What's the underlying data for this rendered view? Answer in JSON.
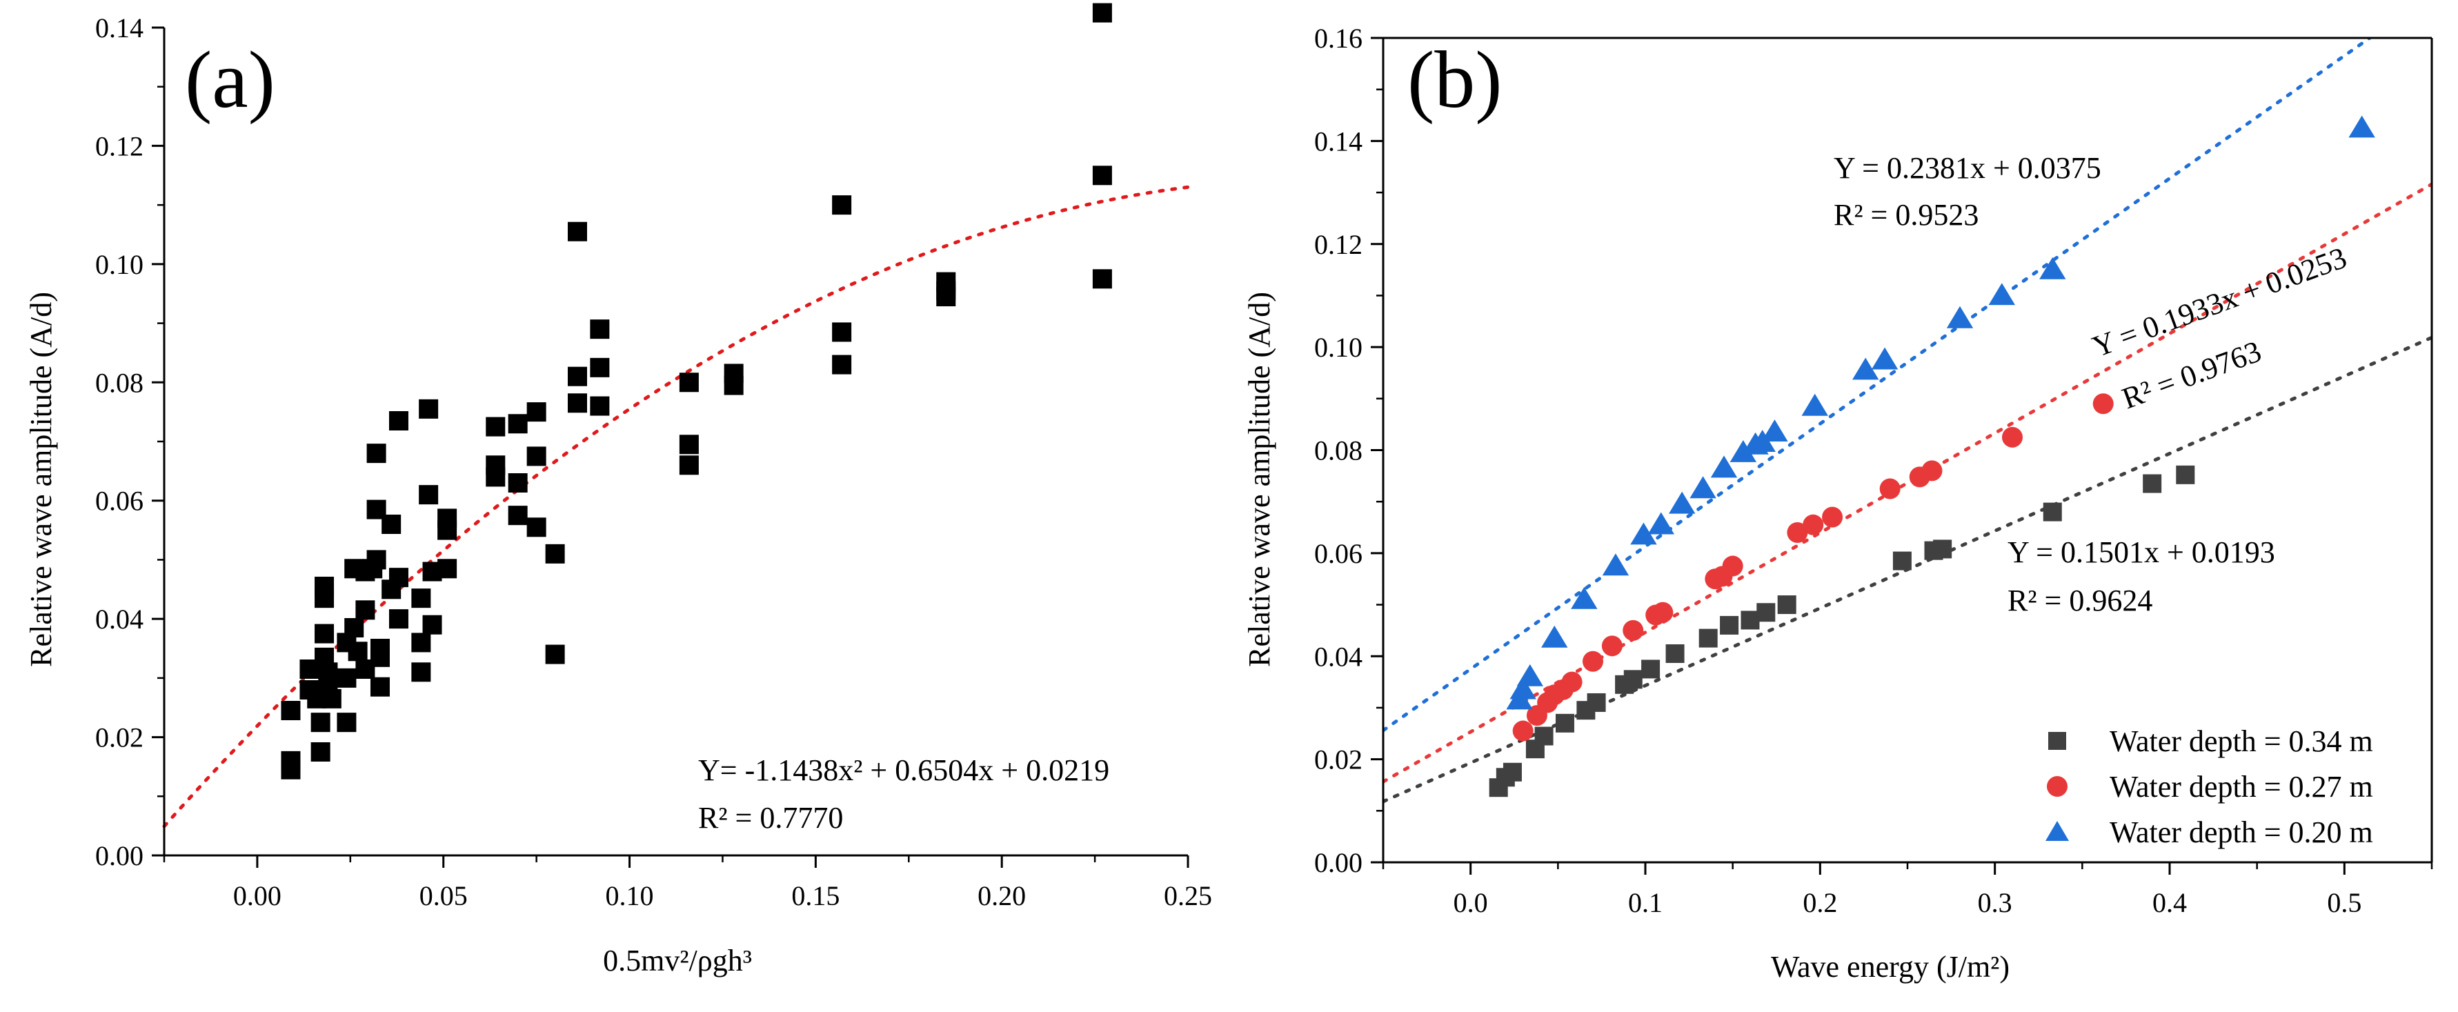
{
  "chart_data": [
    {
      "panel": "(a)",
      "type": "scatter",
      "xlabel": "0.5mv²/ρgh³",
      "ylabel": "Relative wave amplitude (A/d)",
      "xlim": [
        -0.025,
        0.25
      ],
      "ylim": [
        0,
        0.14
      ],
      "xticks": [
        "0.00",
        "0.05",
        "0.10",
        "0.15",
        "0.20",
        "0.25"
      ],
      "yticks": [
        "0.00",
        "0.02",
        "0.04",
        "0.06",
        "0.08",
        "0.10",
        "0.12",
        "0.14"
      ],
      "grid": false,
      "marker": "square",
      "colors": {
        "points": "#000000",
        "fit": "#e0191c"
      },
      "fit": {
        "type": "quadratic",
        "a": -1.1438,
        "b": 0.6504,
        "c": 0.0219
      },
      "equation": "Y= -1.1438x² + 0.6504x + 0.0219",
      "r2": "R² = 0.7770",
      "points": [
        [
          0.009,
          0.0245
        ],
        [
          0.009,
          0.016
        ],
        [
          0.009,
          0.0145
        ],
        [
          0.014,
          0.0315
        ],
        [
          0.014,
          0.028
        ],
        [
          0.016,
          0.0265
        ],
        [
          0.017,
          0.0225
        ],
        [
          0.017,
          0.0175
        ],
        [
          0.018,
          0.0455
        ],
        [
          0.018,
          0.0435
        ],
        [
          0.018,
          0.0375
        ],
        [
          0.018,
          0.0335
        ],
        [
          0.019,
          0.031
        ],
        [
          0.019,
          0.029
        ],
        [
          0.02,
          0.0265
        ],
        [
          0.024,
          0.036
        ],
        [
          0.024,
          0.03
        ],
        [
          0.024,
          0.0225
        ],
        [
          0.026,
          0.0485
        ],
        [
          0.026,
          0.0385
        ],
        [
          0.027,
          0.0345
        ],
        [
          0.029,
          0.048
        ],
        [
          0.029,
          0.0415
        ],
        [
          0.029,
          0.0315
        ],
        [
          0.031,
          0.0485
        ],
        [
          0.032,
          0.068
        ],
        [
          0.032,
          0.0585
        ],
        [
          0.032,
          0.05
        ],
        [
          0.033,
          0.035
        ],
        [
          0.033,
          0.0335
        ],
        [
          0.033,
          0.0285
        ],
        [
          0.036,
          0.056
        ],
        [
          0.036,
          0.045
        ],
        [
          0.038,
          0.0735
        ],
        [
          0.038,
          0.047
        ],
        [
          0.038,
          0.04
        ],
        [
          0.044,
          0.0435
        ],
        [
          0.044,
          0.036
        ],
        [
          0.044,
          0.031
        ],
        [
          0.046,
          0.0755
        ],
        [
          0.046,
          0.061
        ],
        [
          0.047,
          0.048
        ],
        [
          0.047,
          0.039
        ],
        [
          0.051,
          0.057
        ],
        [
          0.051,
          0.055
        ],
        [
          0.051,
          0.0485
        ],
        [
          0.064,
          0.0725
        ],
        [
          0.064,
          0.066
        ],
        [
          0.064,
          0.064
        ],
        [
          0.07,
          0.073
        ],
        [
          0.07,
          0.063
        ],
        [
          0.07,
          0.0575
        ],
        [
          0.075,
          0.075
        ],
        [
          0.075,
          0.0675
        ],
        [
          0.075,
          0.0555
        ],
        [
          0.08,
          0.051
        ],
        [
          0.08,
          0.034
        ],
        [
          0.086,
          0.1055
        ],
        [
          0.086,
          0.081
        ],
        [
          0.086,
          0.0765
        ],
        [
          0.092,
          0.089
        ],
        [
          0.092,
          0.0825
        ],
        [
          0.092,
          0.076
        ],
        [
          0.116,
          0.08
        ],
        [
          0.116,
          0.0695
        ],
        [
          0.116,
          0.066
        ],
        [
          0.128,
          0.0815
        ],
        [
          0.128,
          0.0795
        ],
        [
          0.157,
          0.11
        ],
        [
          0.157,
          0.0885
        ],
        [
          0.157,
          0.083
        ],
        [
          0.185,
          0.097
        ],
        [
          0.185,
          0.0955
        ],
        [
          0.185,
          0.0945
        ],
        [
          0.227,
          0.1425
        ],
        [
          0.227,
          0.115
        ],
        [
          0.227,
          0.0975
        ]
      ]
    },
    {
      "panel": "(b)",
      "type": "scatter",
      "xlabel": "Wave energy (J/m²)",
      "ylabel": "Relative wave amplitude (A/d)",
      "xlim": [
        -0.05,
        0.55
      ],
      "ylim": [
        0,
        0.16
      ],
      "xticks": [
        "0.0",
        "0.1",
        "0.2",
        "0.3",
        "0.4",
        "0.5"
      ],
      "yticks": [
        "0.00",
        "0.02",
        "0.04",
        "0.06",
        "0.08",
        "0.10",
        "0.12",
        "0.14",
        "0.16"
      ],
      "grid": false,
      "legend_position": "bottom-right",
      "series": [
        {
          "name": "Water depth = 0.34 m",
          "marker": "square",
          "color": "#404040",
          "fit": {
            "slope": 0.1501,
            "intercept": 0.0193
          },
          "equation": "Y = 0.1501x + 0.0193",
          "r2": "R² = 0.9624",
          "points": [
            [
              0.016,
              0.0145
            ],
            [
              0.02,
              0.0165
            ],
            [
              0.024,
              0.0175
            ],
            [
              0.037,
              0.022
            ],
            [
              0.042,
              0.0245
            ],
            [
              0.054,
              0.027
            ],
            [
              0.066,
              0.0295
            ],
            [
              0.072,
              0.031
            ],
            [
              0.088,
              0.0345
            ],
            [
              0.093,
              0.0355
            ],
            [
              0.103,
              0.0375
            ],
            [
              0.117,
              0.0405
            ],
            [
              0.136,
              0.0435
            ],
            [
              0.148,
              0.046
            ],
            [
              0.16,
              0.047
            ],
            [
              0.169,
              0.0485
            ],
            [
              0.181,
              0.05
            ],
            [
              0.247,
              0.0585
            ],
            [
              0.265,
              0.0605
            ],
            [
              0.27,
              0.0608
            ],
            [
              0.333,
              0.068
            ],
            [
              0.39,
              0.0735
            ],
            [
              0.409,
              0.0752
            ]
          ]
        },
        {
          "name": "Water depth = 0.27 m",
          "marker": "circle",
          "color": "#e8393a",
          "fit": {
            "slope": 0.1933,
            "intercept": 0.0253
          },
          "equation": "Y = 0.1933x + 0.0253",
          "r2": "R² = 0.9763",
          "points": [
            [
              0.03,
              0.0255
            ],
            [
              0.038,
              0.0285
            ],
            [
              0.044,
              0.031
            ],
            [
              0.048,
              0.0325
            ],
            [
              0.053,
              0.0335
            ],
            [
              0.058,
              0.035
            ],
            [
              0.07,
              0.039
            ],
            [
              0.081,
              0.042
            ],
            [
              0.093,
              0.045
            ],
            [
              0.106,
              0.048
            ],
            [
              0.11,
              0.0485
            ],
            [
              0.14,
              0.055
            ],
            [
              0.144,
              0.0555
            ],
            [
              0.15,
              0.0575
            ],
            [
              0.187,
              0.064
            ],
            [
              0.196,
              0.0655
            ],
            [
              0.207,
              0.067
            ],
            [
              0.24,
              0.0725
            ],
            [
              0.257,
              0.0748
            ],
            [
              0.264,
              0.076
            ],
            [
              0.31,
              0.0825
            ],
            [
              0.362,
              0.089
            ]
          ]
        },
        {
          "name": "Water depth = 0.20 m",
          "marker": "triangle",
          "color": "#1f6fd6",
          "fit": {
            "slope": 0.2381,
            "intercept": 0.0375
          },
          "equation": "Y = 0.2381x + 0.0375",
          "r2": "R² = 0.9523",
          "points": [
            [
              0.028,
              0.0315
            ],
            [
              0.03,
              0.0335
            ],
            [
              0.034,
              0.036
            ],
            [
              0.048,
              0.0435
            ],
            [
              0.065,
              0.051
            ],
            [
              0.083,
              0.0575
            ],
            [
              0.099,
              0.0635
            ],
            [
              0.109,
              0.0655
            ],
            [
              0.121,
              0.0695
            ],
            [
              0.133,
              0.0725
            ],
            [
              0.145,
              0.0765
            ],
            [
              0.156,
              0.0795
            ],
            [
              0.163,
              0.081
            ],
            [
              0.167,
              0.0815
            ],
            [
              0.174,
              0.0835
            ],
            [
              0.197,
              0.0885
            ],
            [
              0.226,
              0.0955
            ],
            [
              0.237,
              0.0975
            ],
            [
              0.28,
              0.1055
            ],
            [
              0.304,
              0.11
            ],
            [
              0.333,
              0.115
            ],
            [
              0.51,
              0.1425
            ]
          ]
        }
      ]
    }
  ]
}
